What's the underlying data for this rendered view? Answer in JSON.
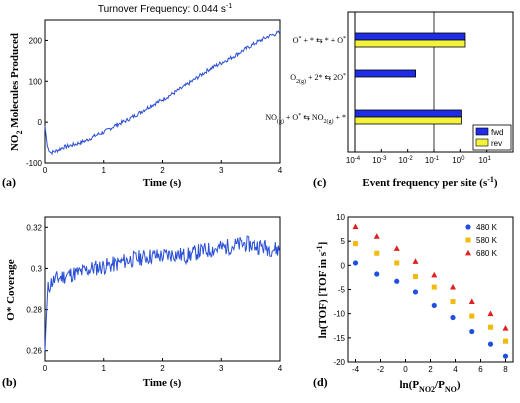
{
  "chart_data": [
    {
      "id": "a",
      "type": "line",
      "panel_label": "(a)",
      "title": "Turnover Frequency: 0.044 s",
      "title_sup": "-1",
      "xlabel": "Time (s)",
      "ylabel_main": "NO",
      "ylabel_sub": "2",
      "ylabel_rest": " Molecules Produced",
      "xlim": [
        0,
        4
      ],
      "ylim": [
        -100,
        250
      ],
      "xticks": [
        0,
        1,
        2,
        3,
        4
      ],
      "yticks": [
        -100,
        0,
        100,
        200
      ],
      "series": [
        {
          "color": "#2a4fd6",
          "x": [
            0,
            0.04,
            0.1,
            0.2,
            0.3,
            0.5,
            0.7,
            0.9,
            1.0,
            1.2,
            1.4,
            1.6,
            1.8,
            2.0,
            2.2,
            2.4,
            2.6,
            2.8,
            3.0,
            3.2,
            3.4,
            3.6,
            3.8,
            4.0
          ],
          "y": [
            -10,
            -60,
            -75,
            -70,
            -62,
            -55,
            -45,
            -30,
            -25,
            -8,
            5,
            22,
            40,
            55,
            72,
            90,
            110,
            130,
            145,
            160,
            178,
            195,
            210,
            220
          ]
        }
      ]
    },
    {
      "id": "b",
      "type": "line",
      "panel_label": "(b)",
      "xlabel": "Time (s)",
      "ylabel": "O* Coverage",
      "xlim": [
        0,
        4
      ],
      "ylim": [
        0.255,
        0.325
      ],
      "xticks": [
        0,
        1,
        2,
        3,
        4
      ],
      "yticks": [
        0.26,
        0.28,
        0.3,
        0.32
      ],
      "series": [
        {
          "color": "#2a4fd6",
          "x": [
            0,
            0.02,
            0.05,
            0.1,
            0.2,
            0.4,
            0.6,
            0.8,
            1.0,
            1.2,
            1.4,
            1.6,
            1.8,
            2.0,
            2.2,
            2.4,
            2.6,
            2.8,
            3.0,
            3.2,
            3.4,
            3.6,
            3.8,
            4.0
          ],
          "y": [
            0.26,
            0.275,
            0.29,
            0.293,
            0.295,
            0.297,
            0.298,
            0.3,
            0.301,
            0.302,
            0.304,
            0.305,
            0.306,
            0.306,
            0.307,
            0.306,
            0.308,
            0.309,
            0.31,
            0.311,
            0.312,
            0.311,
            0.31,
            0.309
          ]
        }
      ]
    },
    {
      "id": "c",
      "type": "bar",
      "orientation": "horizontal",
      "panel_label": "(c)",
      "xlabel": "Event frequency per site (s",
      "xlabel_sup": "-1",
      "xlabel_end": ")",
      "xscale": "log",
      "xlim_exp": [
        -4,
        2
      ],
      "xtick_exps": [
        -4,
        -3,
        -2,
        -1,
        0,
        1
      ],
      "categories": [
        {
          "pre": "O",
          "sup1": "*",
          "mid": " + * ⇆ * + O",
          "sup2": "*",
          "sub1": "",
          "sub2": ""
        },
        {
          "pre": "O",
          "sub1": "2(g)",
          "mid": " + 2* ⇆ 2O",
          "sup2": "*",
          "sup1": "",
          "sub2": ""
        },
        {
          "pre": "NO",
          "sub1": "(g)",
          "mid": " + O",
          "sup1": "*",
          "rest": " ⇆ NO",
          "sub2": "2(g)",
          "end": " + *",
          "sup2": ""
        }
      ],
      "series": [
        {
          "name": "fwd",
          "color": "#1f2ee6",
          "values": [
            1.5,
            0.02,
            1.1
          ]
        },
        {
          "name": "rev",
          "color": "#f3f33c",
          "values": [
            1.5,
            null,
            1.1
          ]
        }
      ],
      "legend_position": "bottom-right"
    },
    {
      "id": "d",
      "type": "scatter",
      "panel_label": "(d)",
      "ylabel": "ln(TOF) [TOF in s",
      "ylabel_sup": "-1",
      "ylabel_end": "]",
      "xlabel_pre": "ln(P",
      "xlabel_sub1": "NO2",
      "xlabel_mid": "/P",
      "xlabel_sub2": "NO",
      "xlabel_end": ")",
      "xlim": [
        -4.6,
        8.6
      ],
      "ylim": [
        -20,
        10
      ],
      "xticks": [
        -4,
        -2,
        0,
        2,
        4,
        6,
        8
      ],
      "yticks": [
        -20,
        -15,
        -10,
        -5,
        0,
        5,
        10
      ],
      "x": [
        -4,
        -2.3,
        -0.7,
        0.8,
        2.3,
        3.8,
        5.3,
        6.8,
        8
      ],
      "series": [
        {
          "name": "480 K",
          "color": "#1f4fe0",
          "marker": "circle",
          "values": [
            0.5,
            -1.8,
            -3.3,
            -5.5,
            -8.3,
            -10.8,
            -13.7,
            -16.3,
            -18.8
          ]
        },
        {
          "name": "580 K",
          "color": "#f2b90f",
          "marker": "square",
          "values": [
            4.5,
            2.5,
            0.5,
            -2.3,
            -4.5,
            -7.5,
            -10.5,
            -12.8,
            -15.7
          ]
        },
        {
          "name": "680 K",
          "color": "#e02020",
          "marker": "triangle",
          "values": [
            8.0,
            6.0,
            3.5,
            0.8,
            -2.0,
            -4.5,
            -7.5,
            -10.0,
            -13.0
          ]
        }
      ],
      "legend_position": "top-right"
    }
  ]
}
